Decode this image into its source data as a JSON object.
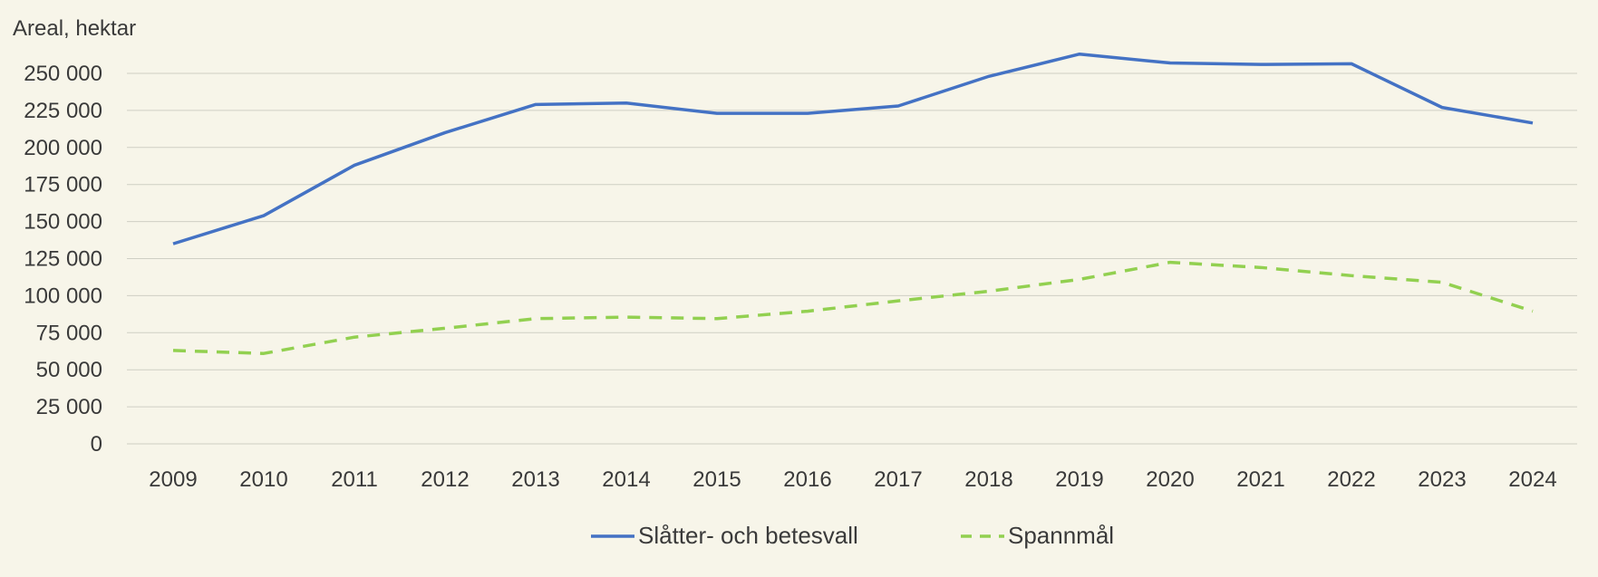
{
  "chart_data": {
    "type": "line",
    "ylabel": "Areal, hektar",
    "xlabel": "",
    "x": [
      "2009",
      "2010",
      "2011",
      "2012",
      "2013",
      "2014",
      "2015",
      "2016",
      "2017",
      "2018",
      "2019",
      "2020",
      "2021",
      "2022",
      "2023",
      "2024"
    ],
    "ylim": [
      0,
      250000
    ],
    "yticks": [
      0,
      25000,
      50000,
      75000,
      100000,
      125000,
      150000,
      175000,
      200000,
      225000,
      250000
    ],
    "ytick_labels": [
      "0",
      "25 000",
      "50 000",
      "75 000",
      "100 000",
      "125 000",
      "150 000",
      "175 000",
      "200 000",
      "225 000",
      "250 000"
    ],
    "grid": true,
    "legend_position": "bottom",
    "series": [
      {
        "name": "Slåtter- och betesvall",
        "color": "#4472c4",
        "style": "solid",
        "values": [
          135000,
          154000,
          188000,
          210000,
          229000,
          230000,
          223000,
          223000,
          228000,
          248000,
          263000,
          257000,
          256000,
          256500,
          227000,
          216500
        ]
      },
      {
        "name": "Spannmål",
        "color": "#92d050",
        "style": "dashed",
        "values": [
          63000,
          61000,
          72000,
          78000,
          84500,
          85500,
          84500,
          89500,
          96500,
          103000,
          111000,
          122500,
          119000,
          113500,
          109000,
          89500
        ]
      }
    ]
  }
}
